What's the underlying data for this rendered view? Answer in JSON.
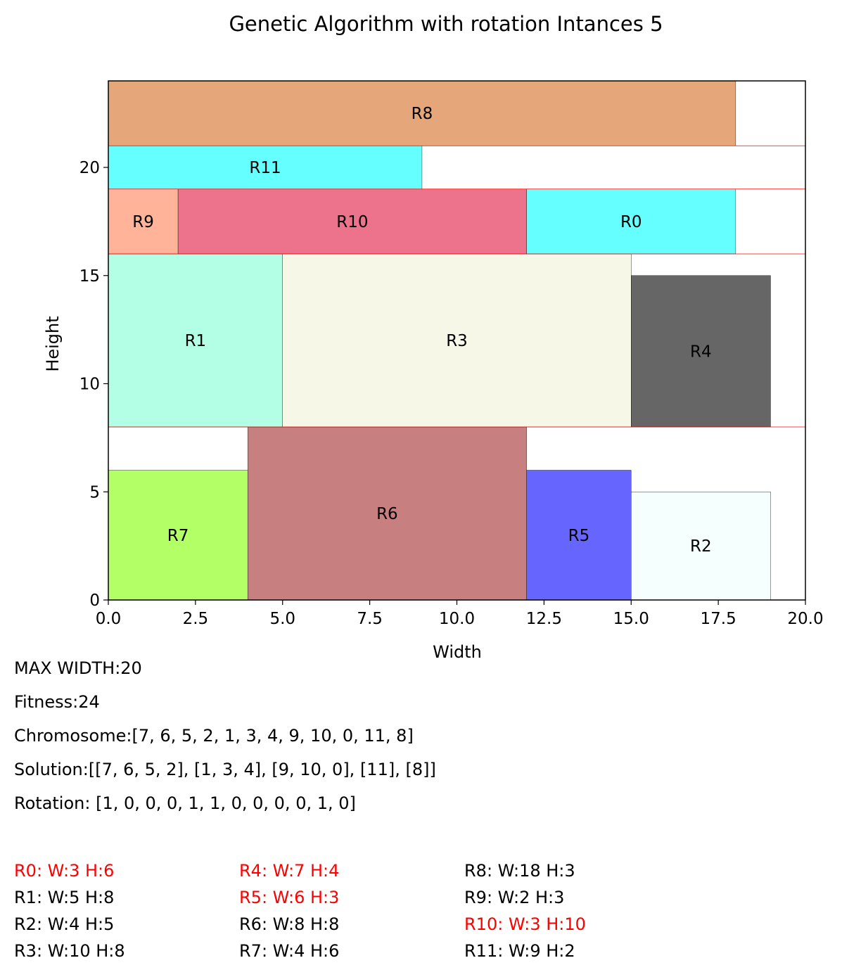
{
  "chart_data": {
    "type": "packing",
    "title": "Genetic Algorithm with rotation Intances 5",
    "xlabel": "Width",
    "ylabel": "Height",
    "xlim": [
      0,
      20
    ],
    "ylim": [
      0,
      24
    ],
    "xticks": [
      "0.0",
      "2.5",
      "5.0",
      "7.5",
      "10.0",
      "12.5",
      "15.0",
      "17.5",
      "20.0"
    ],
    "xtick_values": [
      0,
      2.5,
      5,
      7.5,
      10,
      12.5,
      15,
      17.5,
      20
    ],
    "yticks": [
      "0",
      "5",
      "10",
      "15",
      "20"
    ],
    "ytick_values": [
      0,
      5,
      10,
      15,
      20
    ],
    "level_lines": [
      8,
      16,
      19,
      21
    ],
    "level_line_color": "#ff0000",
    "rects": [
      {
        "label": "R7",
        "x": 0,
        "y": 0,
        "w": 4,
        "h": 6,
        "color": "#b3ff66"
      },
      {
        "label": "R6",
        "x": 4,
        "y": 0,
        "w": 8,
        "h": 8,
        "color": "#c77f7f"
      },
      {
        "label": "R5",
        "x": 12,
        "y": 0,
        "w": 3,
        "h": 6,
        "color": "#6666ff"
      },
      {
        "label": "R2",
        "x": 15,
        "y": 0,
        "w": 4,
        "h": 5,
        "color": "#f5fffe"
      },
      {
        "label": "R1",
        "x": 0,
        "y": 8,
        "w": 5,
        "h": 8,
        "color": "#b3ffe6"
      },
      {
        "label": "R3",
        "x": 5,
        "y": 8,
        "w": 10,
        "h": 8,
        "color": "#f7f7e8"
      },
      {
        "label": "R4",
        "x": 15,
        "y": 8,
        "w": 4,
        "h": 7,
        "color": "#666666"
      },
      {
        "label": "R9",
        "x": 0,
        "y": 16,
        "w": 2,
        "h": 3,
        "color": "#ffb399"
      },
      {
        "label": "R10",
        "x": 2,
        "y": 16,
        "w": 10,
        "h": 3,
        "color": "#ed738c"
      },
      {
        "label": "R0",
        "x": 12,
        "y": 16,
        "w": 6,
        "h": 3,
        "color": "#66ffff"
      },
      {
        "label": "R11",
        "x": 0,
        "y": 19,
        "w": 9,
        "h": 2,
        "color": "#66ffff"
      },
      {
        "label": "R8",
        "x": 0,
        "y": 21,
        "w": 18,
        "h": 3,
        "color": "#e5a67a"
      }
    ]
  },
  "info": {
    "max_width": "MAX WIDTH:20",
    "fitness": "Fitness:24",
    "chromosome": "Chromosome:[7, 6, 5, 2, 1, 3, 4, 9, 10, 0, 11, 8]",
    "solution": "Solution:[[7, 6, 5, 2], [1, 3, 4], [9, 10, 0], [11], [8]]",
    "rotation": "Rotation: [1, 0, 0, 0, 1, 1, 0, 0, 0, 0, 1, 0]"
  },
  "rotated_color": "#ff0000",
  "dimensions": [
    {
      "text": "R0: W:3 H:6",
      "rotated": true
    },
    {
      "text": "R1: W:5 H:8",
      "rotated": false
    },
    {
      "text": "R2: W:4 H:5",
      "rotated": false
    },
    {
      "text": "R3: W:10 H:8",
      "rotated": false
    },
    {
      "text": "R4: W:7 H:4",
      "rotated": true
    },
    {
      "text": "R5: W:6 H:3",
      "rotated": true
    },
    {
      "text": "R6: W:8 H:8",
      "rotated": false
    },
    {
      "text": "R7: W:4 H:6",
      "rotated": false
    },
    {
      "text": "R8: W:18 H:3",
      "rotated": false
    },
    {
      "text": "R9: W:2 H:3",
      "rotated": false
    },
    {
      "text": "R10: W:3 H:10",
      "rotated": true
    },
    {
      "text": "R11: W:9 H:2",
      "rotated": false
    }
  ]
}
